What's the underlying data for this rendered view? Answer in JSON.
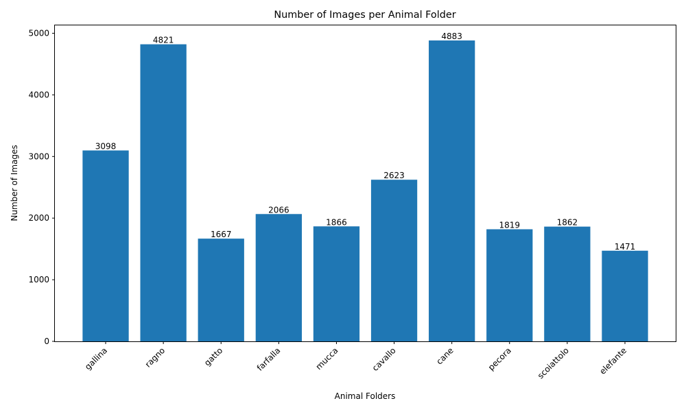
{
  "chart_data": {
    "type": "bar",
    "title": "Number of Images per Animal Folder",
    "xlabel": "Animal Folders",
    "ylabel": "Number of Images",
    "categories": [
      "gallina",
      "ragno",
      "gatto",
      "farfalla",
      "mucca",
      "cavallo",
      "cane",
      "pecora",
      "scoiattolo",
      "elefante"
    ],
    "values": [
      3098,
      4821,
      1667,
      2066,
      1866,
      2623,
      4883,
      1819,
      1862,
      1471
    ],
    "ylim": [
      0,
      5128
    ],
    "yticks": [
      0,
      1000,
      2000,
      3000,
      4000,
      5000
    ],
    "grid": false,
    "bar_color": "#1f77b4",
    "data_labels": true,
    "xtick_rotation": "45 degrees, right-aligned"
  }
}
